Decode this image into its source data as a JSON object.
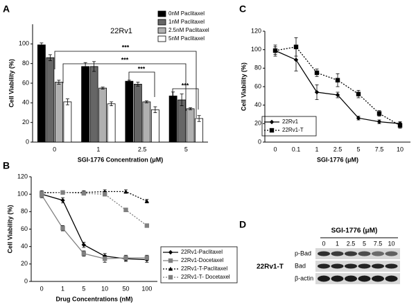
{
  "panel_labels": [
    "A",
    "B",
    "C",
    "D"
  ],
  "chart_data": [
    {
      "type": "bar",
      "title": "22Rv1",
      "x_label": "SGI-1776 Concentration (μM)",
      "y_label": "Cell Viability (%)",
      "categories": [
        "0",
        "1",
        "2.5",
        "5"
      ],
      "series": [
        {
          "name": "0nM Paclitaxel",
          "color": "#000000",
          "values": [
            99,
            77,
            62,
            47
          ],
          "errors": [
            2,
            4,
            1,
            4
          ]
        },
        {
          "name": "1nM Paclitaxel",
          "color": "#666666",
          "values": [
            86,
            77,
            59,
            43
          ],
          "errors": [
            3,
            5,
            2,
            6
          ]
        },
        {
          "name": "2.5nM Paclitaxel",
          "color": "#b0b0b0",
          "values": [
            61,
            55,
            41,
            34
          ],
          "errors": [
            2,
            1,
            1,
            1
          ]
        },
        {
          "name": "5nM Paclitaxel",
          "color": "#ffffff",
          "values": [
            41,
            39,
            33,
            24
          ],
          "errors": [
            3,
            2,
            3,
            3
          ]
        }
      ],
      "ylim": [
        0,
        120
      ],
      "yticks": [
        0,
        20,
        40,
        60,
        80,
        100
      ],
      "annotations": [
        "***",
        "***",
        "***",
        "***"
      ],
      "legend": "top-right"
    },
    {
      "type": "line",
      "x_label": "Drug Concentrations (nM)",
      "y_label": "Cell Viability (%)",
      "categories": [
        "0",
        "1",
        "5",
        "10",
        "50",
        "100"
      ],
      "series": [
        {
          "name": "22Rv1-Paclitaxel",
          "color": "#000000",
          "marker": "diamond",
          "line_style": "solid",
          "values": [
            100,
            93,
            42,
            29,
            26,
            25
          ],
          "errors": [
            3,
            3,
            3,
            3,
            3,
            3
          ]
        },
        {
          "name": "22Rv1-Docetaxel",
          "color": "#808080",
          "marker": "square",
          "line_style": "solid",
          "values": [
            99,
            61,
            32,
            26,
            27,
            27
          ],
          "errors": [
            3,
            3,
            3,
            4,
            3,
            3
          ]
        },
        {
          "name": "22Rv1-T-Paclitaxel",
          "color": "#000000",
          "marker": "triangle",
          "line_style": "dotted",
          "values": [
            102,
            102,
            102,
            103,
            103,
            92
          ],
          "errors": [
            2,
            2,
            2,
            2,
            2,
            2
          ]
        },
        {
          "name": "22Rv1-T- Docetaxel",
          "color": "#808080",
          "marker": "square",
          "line_style": "dotted",
          "values": [
            101,
            102,
            101,
            100,
            82,
            64
          ],
          "errors": [
            2,
            2,
            2,
            2,
            2,
            2
          ]
        }
      ],
      "ylim": [
        0,
        120
      ],
      "yticks": [
        0,
        20,
        40,
        60,
        80,
        100,
        120
      ],
      "legend": "right"
    },
    {
      "type": "line",
      "x_label": "SGI-1776 (μM)",
      "y_label": "Cell Viability (%)",
      "categories": [
        "0",
        "0.1",
        "1",
        "2.5",
        "5",
        "7.5",
        "10"
      ],
      "series": [
        {
          "name": "22Rv1",
          "color": "#000000",
          "marker": "diamond",
          "line_style": "solid",
          "values": [
            99,
            89,
            54,
            51,
            26,
            22,
            20
          ],
          "errors": [
            4,
            12,
            8,
            3,
            2,
            2,
            2
          ]
        },
        {
          "name": "22Rv1-T",
          "color": "#000000",
          "marker": "square",
          "line_style": "dotted",
          "values": [
            99,
            103,
            75,
            67,
            52,
            31,
            18
          ],
          "errors": [
            6,
            10,
            4,
            7,
            4,
            3,
            3
          ]
        }
      ],
      "ylim": [
        0,
        120
      ],
      "yticks": [
        0,
        20,
        40,
        60,
        80,
        100,
        120
      ],
      "legend": "bottom-left"
    }
  ],
  "blot": {
    "title": "SGI-1776 (μM)",
    "lanes": [
      "0",
      "1",
      "2.5",
      "5",
      "7.5",
      "10"
    ],
    "rows": [
      "p-Bad",
      "Bad",
      "β-actin"
    ],
    "cell_line": "22Rv1-T"
  }
}
